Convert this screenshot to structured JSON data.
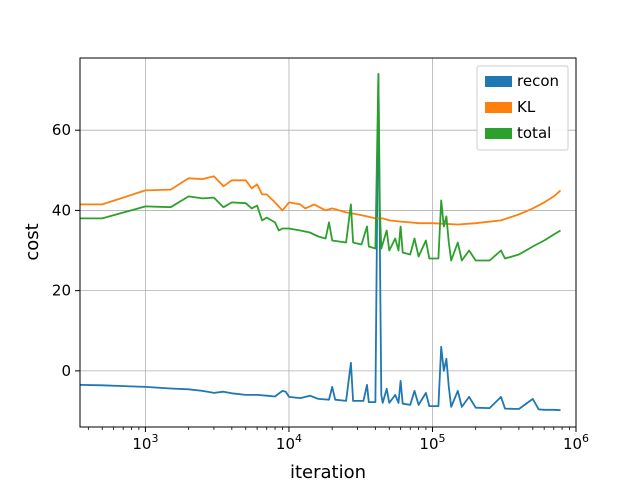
{
  "chart_data": {
    "type": "line",
    "title": "",
    "xlabel": "iteration",
    "ylabel": "cost",
    "xscale": "log",
    "xlim": [
      350,
      1000000
    ],
    "ylim": [
      -14,
      78
    ],
    "grid": true,
    "legend_placement": "top-right",
    "x_tick_labels": [
      {
        "value": 1000,
        "base": "10",
        "exp": "3"
      },
      {
        "value": 10000,
        "base": "10",
        "exp": "4"
      },
      {
        "value": 100000,
        "base": "10",
        "exp": "5"
      },
      {
        "value": 1000000,
        "base": "10",
        "exp": "6"
      }
    ],
    "y_ticks": [
      0,
      20,
      40,
      60
    ],
    "y_tick_labels": [
      "0",
      "20",
      "40",
      "60"
    ],
    "series": [
      {
        "name": "recon",
        "color": "#1f77b4",
        "points": [
          [
            350,
            -3.5
          ],
          [
            500,
            -3.6
          ],
          [
            1000,
            -4.0
          ],
          [
            1500,
            -4.4
          ],
          [
            2000,
            -4.6
          ],
          [
            2500,
            -5.0
          ],
          [
            3000,
            -5.5
          ],
          [
            3500,
            -5.2
          ],
          [
            4000,
            -5.6
          ],
          [
            5000,
            -6.0
          ],
          [
            6000,
            -6.0
          ],
          [
            7000,
            -6.2
          ],
          [
            8000,
            -6.4
          ],
          [
            9000,
            -5.0
          ],
          [
            9500,
            -5.2
          ],
          [
            10000,
            -6.5
          ],
          [
            12000,
            -6.8
          ],
          [
            14000,
            -6.2
          ],
          [
            16000,
            -7.0
          ],
          [
            19000,
            -7.2
          ],
          [
            20000,
            -4.0
          ],
          [
            21000,
            -7.2
          ],
          [
            25000,
            -7.5
          ],
          [
            27000,
            2.0
          ],
          [
            28000,
            -7.5
          ],
          [
            33000,
            -7.5
          ],
          [
            35000,
            -3.5
          ],
          [
            36000,
            -7.8
          ],
          [
            40000,
            -7.8
          ],
          [
            42000,
            74.0
          ],
          [
            43000,
            30.0
          ],
          [
            44000,
            -6.0
          ],
          [
            45000,
            -8.0
          ],
          [
            48000,
            -4.5
          ],
          [
            50000,
            -8.0
          ],
          [
            55000,
            -6.0
          ],
          [
            58000,
            -8.0
          ],
          [
            60000,
            -2.5
          ],
          [
            62000,
            -8.2
          ],
          [
            70000,
            -8.5
          ],
          [
            75000,
            -5.0
          ],
          [
            80000,
            -8.5
          ],
          [
            90000,
            -5.5
          ],
          [
            95000,
            -8.8
          ],
          [
            110000,
            -8.8
          ],
          [
            115000,
            6.0
          ],
          [
            120000,
            0.0
          ],
          [
            125000,
            3.0
          ],
          [
            130000,
            -4.0
          ],
          [
            135000,
            -9.0
          ],
          [
            150000,
            -5.0
          ],
          [
            160000,
            -9.0
          ],
          [
            180000,
            -6.5
          ],
          [
            200000,
            -9.2
          ],
          [
            250000,
            -9.3
          ],
          [
            300000,
            -6.5
          ],
          [
            320000,
            -9.4
          ],
          [
            400000,
            -9.5
          ],
          [
            500000,
            -7.0
          ],
          [
            550000,
            -9.6
          ],
          [
            600000,
            -9.7
          ],
          [
            700000,
            -9.7
          ],
          [
            780000,
            -9.8
          ]
        ]
      },
      {
        "name": "KL",
        "color": "#ff7f0e",
        "points": [
          [
            350,
            41.5
          ],
          [
            500,
            41.5
          ],
          [
            1000,
            45.0
          ],
          [
            1500,
            45.2
          ],
          [
            2000,
            48.0
          ],
          [
            2500,
            47.8
          ],
          [
            3000,
            48.5
          ],
          [
            3500,
            46.0
          ],
          [
            4000,
            47.5
          ],
          [
            5000,
            47.5
          ],
          [
            5500,
            45.5
          ],
          [
            6000,
            46.5
          ],
          [
            6500,
            44.0
          ],
          [
            7000,
            44.0
          ],
          [
            8000,
            42.0
          ],
          [
            9000,
            40.0
          ],
          [
            10000,
            42.0
          ],
          [
            12000,
            41.5
          ],
          [
            13000,
            40.5
          ],
          [
            15000,
            41.5
          ],
          [
            18000,
            40.0
          ],
          [
            20000,
            40.5
          ],
          [
            25000,
            39.5
          ],
          [
            30000,
            39.0
          ],
          [
            35000,
            38.5
          ],
          [
            40000,
            38.0
          ],
          [
            45000,
            38.0
          ],
          [
            50000,
            37.5
          ],
          [
            60000,
            37.2
          ],
          [
            70000,
            37.0
          ],
          [
            80000,
            36.8
          ],
          [
            100000,
            36.8
          ],
          [
            150000,
            36.5
          ],
          [
            200000,
            36.8
          ],
          [
            300000,
            37.5
          ],
          [
            400000,
            39.0
          ],
          [
            500000,
            40.5
          ],
          [
            600000,
            42.0
          ],
          [
            700000,
            43.5
          ],
          [
            780000,
            45.0
          ]
        ]
      },
      {
        "name": "total",
        "color": "#2ca02c",
        "points": [
          [
            350,
            38.0
          ],
          [
            500,
            38.0
          ],
          [
            1000,
            41.0
          ],
          [
            1500,
            40.8
          ],
          [
            2000,
            43.5
          ],
          [
            2500,
            43.0
          ],
          [
            3000,
            43.2
          ],
          [
            3500,
            40.8
          ],
          [
            4000,
            42.0
          ],
          [
            5000,
            41.8
          ],
          [
            5500,
            40.5
          ],
          [
            6000,
            41.2
          ],
          [
            6500,
            37.5
          ],
          [
            7000,
            38.2
          ],
          [
            8000,
            37.0
          ],
          [
            8500,
            35.0
          ],
          [
            9000,
            35.5
          ],
          [
            10000,
            35.5
          ],
          [
            12000,
            35.0
          ],
          [
            14000,
            34.5
          ],
          [
            16000,
            33.5
          ],
          [
            18000,
            33.0
          ],
          [
            19000,
            37.0
          ],
          [
            20000,
            32.5
          ],
          [
            25000,
            32.0
          ],
          [
            27000,
            41.5
          ],
          [
            28000,
            32.0
          ],
          [
            32000,
            31.5
          ],
          [
            35000,
            36.0
          ],
          [
            36000,
            31.0
          ],
          [
            40000,
            30.5
          ],
          [
            42000,
            74.0
          ],
          [
            43000,
            40.0
          ],
          [
            44000,
            30.5
          ],
          [
            48000,
            35.0
          ],
          [
            50000,
            30.0
          ],
          [
            55000,
            33.0
          ],
          [
            58000,
            30.0
          ],
          [
            60000,
            36.0
          ],
          [
            62000,
            29.5
          ],
          [
            70000,
            29.0
          ],
          [
            75000,
            33.0
          ],
          [
            80000,
            28.5
          ],
          [
            90000,
            32.5
          ],
          [
            95000,
            28.0
          ],
          [
            110000,
            28.0
          ],
          [
            115000,
            42.5
          ],
          [
            120000,
            36.0
          ],
          [
            125000,
            38.5
          ],
          [
            130000,
            32.0
          ],
          [
            135000,
            27.5
          ],
          [
            150000,
            32.0
          ],
          [
            160000,
            27.5
          ],
          [
            180000,
            30.0
          ],
          [
            200000,
            27.5
          ],
          [
            250000,
            27.5
          ],
          [
            300000,
            30.0
          ],
          [
            320000,
            28.0
          ],
          [
            400000,
            29.0
          ],
          [
            500000,
            31.0
          ],
          [
            600000,
            32.5
          ],
          [
            700000,
            34.0
          ],
          [
            780000,
            35.0
          ]
        ]
      }
    ]
  }
}
